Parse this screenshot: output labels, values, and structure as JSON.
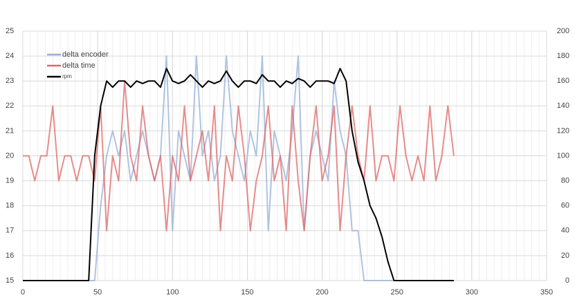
{
  "chart_data": {
    "type": "line",
    "x": [
      0,
      4,
      8,
      12,
      16,
      20,
      24,
      28,
      32,
      36,
      40,
      44,
      48,
      52,
      56,
      60,
      64,
      68,
      72,
      76,
      80,
      84,
      88,
      92,
      96,
      100,
      104,
      108,
      112,
      116,
      120,
      124,
      128,
      132,
      136,
      140,
      144,
      148,
      152,
      156,
      160,
      164,
      168,
      172,
      176,
      180,
      184,
      188,
      192,
      196,
      200,
      204,
      208,
      212,
      216,
      220,
      224,
      228,
      232,
      236,
      240,
      244,
      248,
      252,
      256,
      260,
      264,
      268,
      272,
      276,
      280,
      284,
      288
    ],
    "series": [
      {
        "name": "delta encoder",
        "color": "#95b0d6",
        "values": [
          15,
          15,
          15,
          15,
          15,
          15,
          15,
          15,
          15,
          15,
          15,
          15,
          15,
          18,
          20,
          21,
          20,
          21,
          19,
          20,
          21,
          20,
          19,
          20,
          24,
          17,
          21,
          20,
          19,
          24,
          20,
          21,
          19,
          20,
          24,
          21,
          20,
          19,
          21,
          20,
          24,
          17,
          21,
          20,
          19,
          21,
          24,
          17,
          20,
          21,
          20,
          19,
          23,
          21,
          20,
          17,
          17,
          15,
          15,
          15,
          15,
          15,
          15,
          15,
          15,
          15,
          15,
          15,
          15,
          15,
          15,
          15,
          15
        ]
      },
      {
        "name": "delta time",
        "color": "#e06666",
        "values": [
          20,
          20,
          19,
          20,
          20,
          22,
          19,
          20,
          20,
          19,
          20,
          20,
          19,
          22,
          17,
          20,
          19,
          23,
          20,
          19,
          22,
          20,
          19,
          20,
          17,
          20,
          19,
          22,
          19,
          20,
          21,
          19,
          22,
          17,
          20,
          19,
          22,
          20,
          17,
          19,
          20,
          22,
          19,
          20,
          17,
          22,
          19,
          17,
          20,
          22,
          19,
          20,
          22,
          17,
          20,
          22,
          20,
          19,
          22,
          19,
          20,
          20,
          19,
          22,
          20,
          19,
          20,
          19,
          22,
          19,
          20,
          22,
          20
        ]
      },
      {
        "name": "rpm",
        "color": "#000000",
        "axis": "y2",
        "values": [
          0,
          0,
          0,
          0,
          0,
          0,
          0,
          0,
          0,
          0,
          0,
          0,
          100,
          140,
          160,
          155,
          160,
          160,
          155,
          160,
          158,
          160,
          160,
          155,
          170,
          160,
          158,
          160,
          165,
          160,
          155,
          160,
          158,
          160,
          168,
          160,
          155,
          160,
          160,
          158,
          165,
          160,
          160,
          155,
          160,
          158,
          162,
          160,
          155,
          160,
          160,
          160,
          158,
          170,
          160,
          120,
          95,
          80,
          60,
          50,
          35,
          15,
          0,
          0,
          0,
          0,
          0,
          0,
          0,
          0,
          0,
          0,
          0
        ]
      }
    ],
    "xlim": [
      0,
      350
    ],
    "xticks": [
      0,
      50,
      100,
      150,
      200,
      250,
      300,
      350
    ],
    "ylim": [
      15,
      25
    ],
    "yticks": [
      15,
      16,
      17,
      18,
      19,
      20,
      21,
      22,
      23,
      24,
      25
    ],
    "y2lim": [
      0,
      200
    ],
    "y2ticks": [
      0,
      20,
      40,
      60,
      80,
      100,
      120,
      140,
      160,
      180,
      200
    ],
    "grid": true,
    "legend": "top-left"
  }
}
